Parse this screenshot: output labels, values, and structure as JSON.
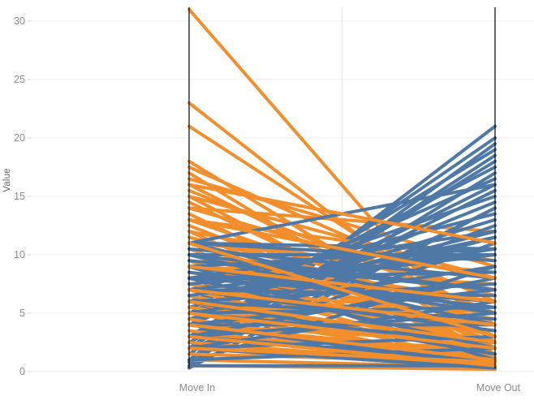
{
  "chart_data": {
    "type": "line",
    "subtype": "slope-graph",
    "title": "",
    "ylabel": "Value",
    "categories": [
      "Move In",
      "Move Out"
    ],
    "yticks": [
      0,
      5,
      10,
      15,
      20,
      25,
      30
    ],
    "ylim": [
      0,
      31.2
    ],
    "grid": true,
    "legend": "none",
    "colors": {
      "orange": "#f28e2b",
      "blue": "#4e79a7",
      "axis_line": "#000000",
      "gridline": "#ececec",
      "tick_color": "#d9d9d9",
      "tick_label": "#8a8a8a",
      "axis_title": "#666666",
      "background": "#ffffff"
    },
    "lines": [
      [
        31,
        0.9,
        "o"
      ],
      [
        23,
        2.5,
        "o"
      ],
      [
        21,
        4,
        "o"
      ],
      [
        18,
        2,
        "o"
      ],
      [
        17.5,
        6,
        "o"
      ],
      [
        17,
        1,
        "o"
      ],
      [
        16.5,
        9,
        "o"
      ],
      [
        16,
        3,
        "o"
      ],
      [
        15.5,
        5,
        "o"
      ],
      [
        15,
        1.5,
        "o"
      ],
      [
        15,
        8,
        "o"
      ],
      [
        14.5,
        2,
        "o"
      ],
      [
        14,
        12,
        "o"
      ],
      [
        0.3,
        14,
        "b"
      ],
      [
        1,
        21,
        "b"
      ],
      [
        14,
        6.5,
        "o"
      ],
      [
        2,
        20,
        "b"
      ],
      [
        13.5,
        1,
        "o"
      ],
      [
        0.5,
        19.5,
        "b"
      ],
      [
        13,
        4,
        "o"
      ],
      [
        3,
        19,
        "b"
      ],
      [
        13,
        9.5,
        "o"
      ],
      [
        1.5,
        18.5,
        "b"
      ],
      [
        12.5,
        2.5,
        "o"
      ],
      [
        2,
        18,
        "b"
      ],
      [
        12,
        7,
        "o"
      ],
      [
        4,
        17.5,
        "b"
      ],
      [
        12,
        0.5,
        "o"
      ],
      [
        1,
        17,
        "b"
      ],
      [
        11.5,
        5,
        "o"
      ],
      [
        5,
        16.5,
        "b"
      ],
      [
        11,
        2,
        "o"
      ],
      [
        11,
        16,
        "b"
      ],
      [
        11,
        8.5,
        "o"
      ],
      [
        3,
        16,
        "b"
      ],
      [
        10.5,
        1,
        "o"
      ],
      [
        2.5,
        15.5,
        "b"
      ],
      [
        10,
        6,
        "o"
      ],
      [
        6,
        15,
        "b"
      ],
      [
        10,
        3,
        "o"
      ],
      [
        4,
        14.5,
        "b"
      ],
      [
        9.5,
        0.5,
        "o"
      ],
      [
        1,
        14,
        "b"
      ],
      [
        9,
        7.5,
        "o"
      ],
      [
        7,
        13.5,
        "b"
      ],
      [
        5,
        13,
        "b"
      ],
      [
        9,
        2,
        "o"
      ],
      [
        3,
        12.5,
        "b"
      ],
      [
        8.5,
        4.5,
        "o"
      ],
      [
        5.5,
        12,
        "b"
      ],
      [
        8,
        1,
        "o"
      ],
      [
        8,
        12,
        "b"
      ],
      [
        8,
        6,
        "o"
      ],
      [
        6,
        11.5,
        "b"
      ],
      [
        7.5,
        2.5,
        "o"
      ],
      [
        4.5,
        11.5,
        "b"
      ],
      [
        7,
        0.5,
        "o"
      ],
      [
        2,
        11,
        "b"
      ],
      [
        7,
        5,
        "o"
      ],
      [
        9,
        10.5,
        "b"
      ],
      [
        6.5,
        1.5,
        "o"
      ],
      [
        11,
        10.5,
        "b"
      ],
      [
        6,
        4,
        "o"
      ],
      [
        6.5,
        10.5,
        "b"
      ],
      [
        6,
        0.3,
        "o"
      ],
      [
        10,
        10,
        "b"
      ],
      [
        5.5,
        2,
        "o"
      ],
      [
        7,
        10,
        "b"
      ],
      [
        5,
        3.5,
        "o"
      ],
      [
        7.5,
        10,
        "b"
      ],
      [
        5,
        1,
        "o"
      ],
      [
        11,
        9.5,
        "b"
      ],
      [
        4.5,
        0.5,
        "o"
      ],
      [
        5,
        9,
        "b"
      ],
      [
        4,
        2.5,
        "o"
      ],
      [
        0.8,
        9,
        "b"
      ],
      [
        4,
        1.5,
        "o"
      ],
      [
        8,
        8.5,
        "b"
      ],
      [
        3.5,
        0.3,
        "o"
      ],
      [
        3,
        8,
        "b"
      ],
      [
        3,
        2,
        "o"
      ],
      [
        10.5,
        8,
        "b"
      ],
      [
        3,
        1,
        "o"
      ],
      [
        6,
        7.5,
        "b"
      ],
      [
        2.5,
        0.5,
        "o"
      ],
      [
        9.5,
        7,
        "b"
      ],
      [
        2,
        1.2,
        "o"
      ],
      [
        10,
        7,
        "b"
      ],
      [
        2,
        0.3,
        "o"
      ],
      [
        4,
        7,
        "b"
      ],
      [
        1.5,
        0.8,
        "o"
      ],
      [
        7,
        6.5,
        "b"
      ],
      [
        1,
        0.4,
        "o"
      ],
      [
        2,
        6,
        "b"
      ],
      [
        1,
        2,
        "o"
      ],
      [
        8,
        6,
        "b"
      ],
      [
        0.5,
        0.2,
        "o"
      ],
      [
        5,
        5.5,
        "b"
      ],
      [
        8.5,
        5.5,
        "b"
      ],
      [
        9,
        5,
        "b"
      ],
      [
        3,
        5,
        "b"
      ],
      [
        11,
        5,
        "b"
      ],
      [
        6,
        4.5,
        "b"
      ],
      [
        10,
        4,
        "b"
      ],
      [
        4,
        4,
        "b"
      ],
      [
        7,
        3.5,
        "b"
      ],
      [
        2,
        3,
        "b"
      ],
      [
        5,
        2.5,
        "b"
      ],
      [
        8,
        2,
        "b"
      ],
      [
        6,
        1.5,
        "b"
      ],
      [
        3,
        1,
        "b"
      ],
      [
        9,
        1,
        "b"
      ],
      [
        4,
        0.5,
        "b"
      ],
      [
        0.5,
        0.5,
        "b"
      ],
      [
        2,
        0.3,
        "b"
      ],
      [
        1,
        2,
        "b"
      ],
      [
        13,
        8,
        "o"
      ],
      [
        16,
        11,
        "o"
      ],
      [
        9,
        6,
        "o"
      ],
      [
        5,
        2,
        "o"
      ],
      [
        3,
        0.5,
        "o"
      ],
      [
        7,
        4,
        "o"
      ],
      [
        11,
        3,
        "o"
      ],
      [
        4,
        1,
        "o"
      ],
      [
        2,
        0.8,
        "o"
      ],
      [
        6,
        2.5,
        "o"
      ]
    ]
  }
}
